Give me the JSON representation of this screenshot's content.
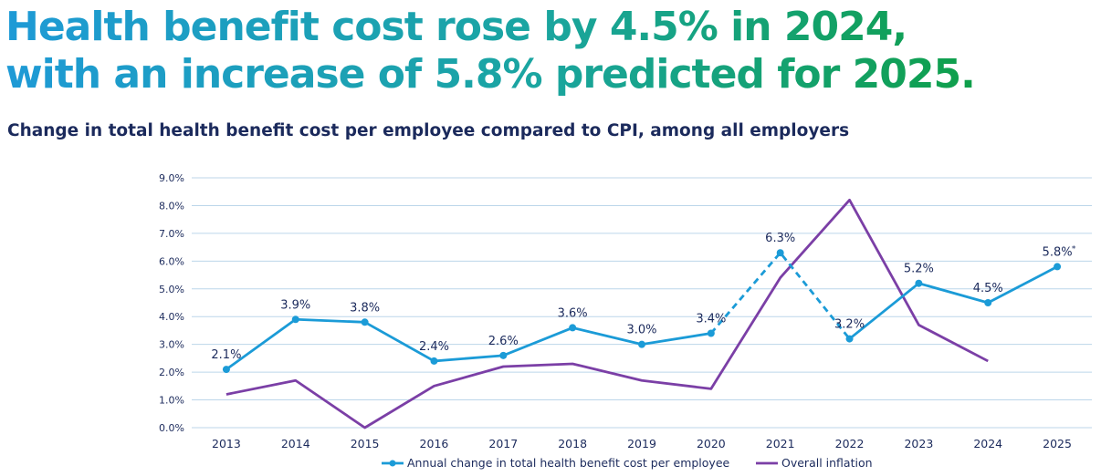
{
  "headline": {
    "line1": "Health benefit cost rose by 4.5% in 2024,",
    "line2": "with an increase of 5.8% predicted for 2025."
  },
  "subtitle": "Change in total health benefit cost per employee compared to CPI, among all employers",
  "colors": {
    "blue": "#1b9bd7",
    "purple": "#7b3fa6",
    "grid": "#bcd6ea",
    "text": "#1b2a5c"
  },
  "chart_data": {
    "type": "line",
    "categories": [
      "2013",
      "2014",
      "2015",
      "2016",
      "2017",
      "2018",
      "2019",
      "2020",
      "2021",
      "2022",
      "2023",
      "2024",
      "2025"
    ],
    "ylim": [
      0,
      9
    ],
    "yticks": [
      "0.0%",
      "1.0%",
      "2.0%",
      "3.0%",
      "4.0%",
      "5.0%",
      "6.0%",
      "7.0%",
      "8.0%",
      "9.0%"
    ],
    "grid": true,
    "legend_position": "bottom",
    "series": [
      {
        "name": "Annual change in total health benefit cost per employee",
        "values": [
          2.1,
          3.9,
          3.8,
          2.4,
          2.6,
          3.6,
          3.0,
          3.4,
          6.3,
          3.2,
          5.2,
          4.5,
          5.8
        ],
        "labels": [
          "2.1%",
          "3.9%",
          "3.8%",
          "2.4%",
          "2.6%",
          "3.6%",
          "3.0%",
          "3.4%",
          "6.3%",
          "3.2%",
          "5.2%",
          "4.5%",
          "5.8%"
        ],
        "markers": true,
        "dashed_segments": [
          "2020-2021",
          "2021-2022"
        ],
        "annotation_2025": "*"
      },
      {
        "name": "Overall inflation",
        "values": [
          1.2,
          1.7,
          0.0,
          1.5,
          2.2,
          2.3,
          1.7,
          1.4,
          5.4,
          8.2,
          3.7,
          2.4,
          null
        ],
        "markers": false
      }
    ]
  }
}
